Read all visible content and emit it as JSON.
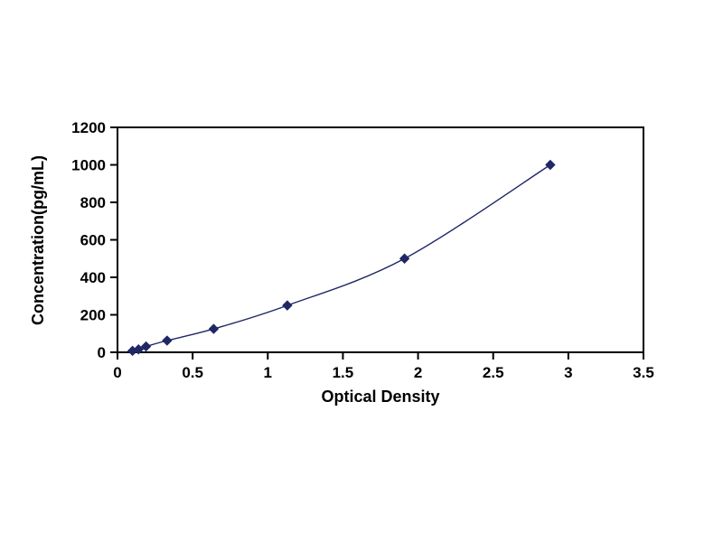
{
  "chart_data": {
    "type": "line",
    "title": "",
    "xlabel": "Optical Density",
    "ylabel": "Concentration(pg/mL)",
    "x": [
      0.1,
      0.14,
      0.19,
      0.33,
      0.64,
      1.13,
      1.91,
      2.88
    ],
    "y": [
      7.8,
      15.6,
      31.2,
      62.5,
      125,
      250,
      500,
      1000
    ],
    "xlim": [
      0,
      3.5
    ],
    "ylim": [
      0,
      1200
    ],
    "xticks": [
      0,
      0.5,
      1,
      1.5,
      2,
      2.5,
      3,
      3.5
    ],
    "yticks": [
      0,
      200,
      400,
      600,
      800,
      1000,
      1200
    ],
    "grid": false,
    "legend": "none",
    "marker": "diamond",
    "line_color": "#1f2766",
    "marker_color": "#1f2766",
    "axis_color": "#000000",
    "background": "#ffffff"
  }
}
